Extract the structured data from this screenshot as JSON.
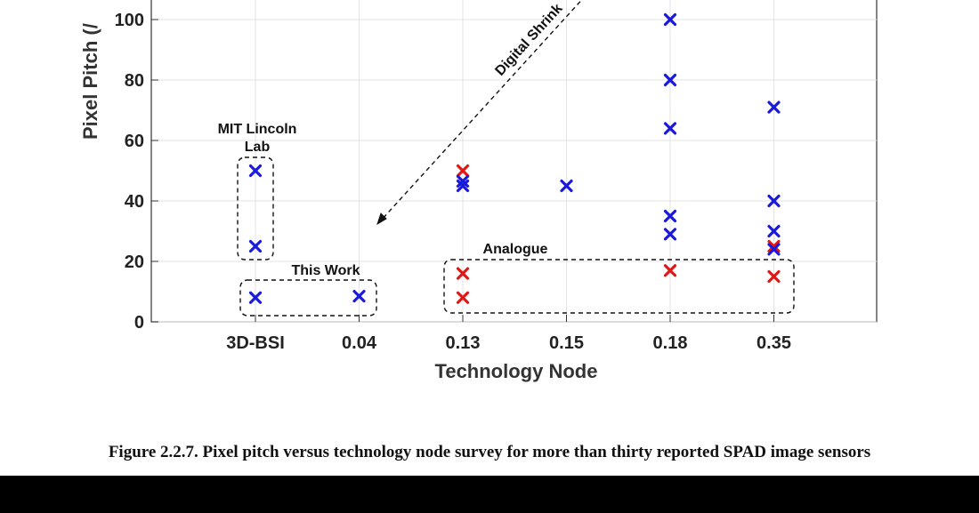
{
  "caption": "Figure 2.2.7. Pixel pitch versus technology node survey for more than thirty reported SPAD image sensors",
  "chart_data": {
    "type": "scatter",
    "title": "",
    "xlabel": "Technology Node",
    "ylabel": "Pixel Pitch (/",
    "categories": [
      "3D-BSI",
      "0.04",
      "0.13",
      "0.15",
      "0.18",
      "0.35"
    ],
    "yticks": [
      0,
      20,
      40,
      60,
      80,
      100
    ],
    "ylim": [
      0,
      100
    ],
    "grid": true,
    "colors": {
      "blue": "#1a1adc",
      "red": "#e01818"
    },
    "series": [
      {
        "color": "blue",
        "points": [
          {
            "x": "3D-BSI",
            "y": 50
          },
          {
            "x": "3D-BSI",
            "y": 25
          },
          {
            "x": "3D-BSI",
            "y": 8
          },
          {
            "x": "0.04",
            "y": 8.5
          },
          {
            "x": "0.13",
            "y": 46.5
          },
          {
            "x": "0.13",
            "y": 45
          },
          {
            "x": "0.15",
            "y": 45
          },
          {
            "x": "0.18",
            "y": 100
          },
          {
            "x": "0.18",
            "y": 80
          },
          {
            "x": "0.18",
            "y": 64
          },
          {
            "x": "0.18",
            "y": 35
          },
          {
            "x": "0.18",
            "y": 29
          },
          {
            "x": "0.35",
            "y": 71
          },
          {
            "x": "0.35",
            "y": 40
          },
          {
            "x": "0.35",
            "y": 30
          },
          {
            "x": "0.35",
            "y": 24
          }
        ]
      },
      {
        "color": "red",
        "points": [
          {
            "x": "0.13",
            "y": 50
          },
          {
            "x": "0.13",
            "y": 16
          },
          {
            "x": "0.13",
            "y": 8
          },
          {
            "x": "0.18",
            "y": 17
          },
          {
            "x": "0.35",
            "y": 25
          },
          {
            "x": "0.35",
            "y": 15
          }
        ]
      }
    ],
    "annotations": [
      {
        "name": "mit-lincoln-lab",
        "lines": [
          "MIT Lincoln",
          "Lab"
        ]
      },
      {
        "name": "this-work",
        "lines": [
          "This Work"
        ]
      },
      {
        "name": "analogue",
        "lines": [
          "Analogue"
        ]
      },
      {
        "name": "digital-shrink",
        "lines": [
          "Digital Shrink"
        ]
      }
    ]
  }
}
